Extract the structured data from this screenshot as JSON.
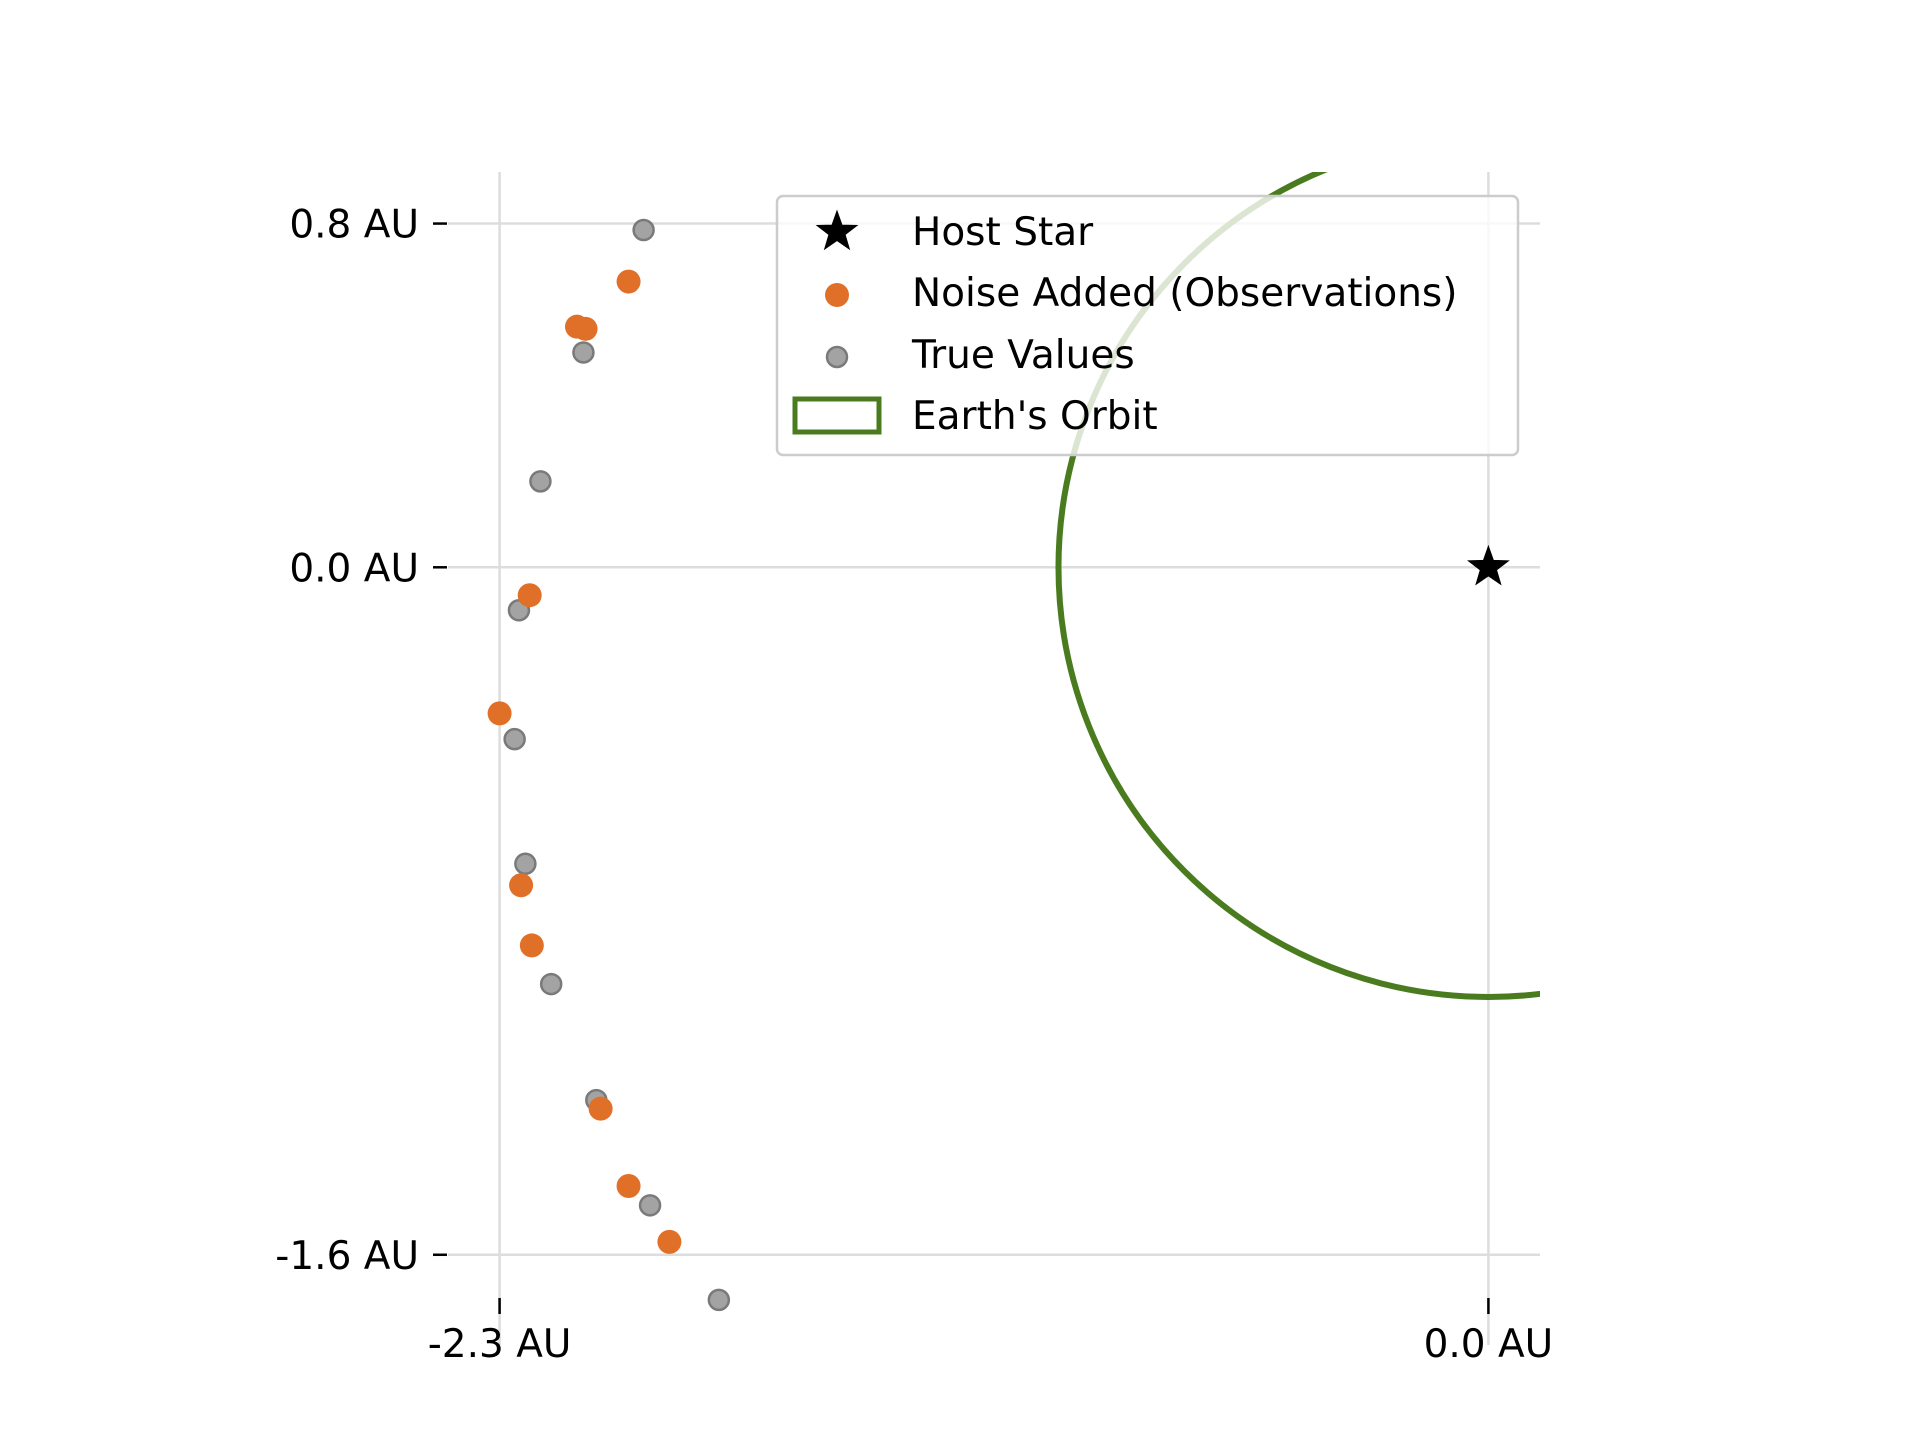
{
  "chart_data": {
    "type": "scatter",
    "title": "",
    "xlabel": "",
    "ylabel": "",
    "xlim": [
      -2.42,
      0.12
    ],
    "ylim": [
      -1.81,
      0.92
    ],
    "x_ticks": [
      {
        "value": -2.3,
        "label": "-2.3 AU"
      },
      {
        "value": 0.0,
        "label": "0.0 AU"
      }
    ],
    "y_ticks": [
      {
        "value": 0.8,
        "label": "0.8 AU"
      },
      {
        "value": 0.0,
        "label": "0.0 AU"
      },
      {
        "value": -1.6,
        "label": "-1.6 AU"
      }
    ],
    "grid": true,
    "legend_placement": "top-right",
    "colors": {
      "host_star": "#000000",
      "noise_added": "#e07028",
      "true_values": "#a3a3a3",
      "true_values_edge": "#7a7a7a",
      "earth_orbit": "#4a7c1f",
      "grid": "#dddddd"
    },
    "series": [
      {
        "name": "Host Star",
        "marker": "star",
        "points": [
          {
            "x": 0.0,
            "y": 0.0
          }
        ]
      },
      {
        "name": "Noise Added (Observations)",
        "marker": "circle",
        "points": [
          {
            "x": -2.0,
            "y": 0.665
          },
          {
            "x": -2.12,
            "y": 0.56
          },
          {
            "x": -2.1,
            "y": 0.555
          },
          {
            "x": -2.23,
            "y": -0.065
          },
          {
            "x": -2.3,
            "y": -0.34
          },
          {
            "x": -2.25,
            "y": -0.74
          },
          {
            "x": -2.225,
            "y": -0.88
          },
          {
            "x": -2.065,
            "y": -1.26
          },
          {
            "x": -2.0,
            "y": -1.44
          },
          {
            "x": -1.905,
            "y": -1.57
          }
        ]
      },
      {
        "name": "True Values",
        "marker": "circle",
        "points": [
          {
            "x": -1.965,
            "y": 0.785
          },
          {
            "x": -2.105,
            "y": 0.5
          },
          {
            "x": -2.205,
            "y": 0.2
          },
          {
            "x": -2.255,
            "y": -0.1
          },
          {
            "x": -2.265,
            "y": -0.4
          },
          {
            "x": -2.24,
            "y": -0.69
          },
          {
            "x": -2.18,
            "y": -0.97
          },
          {
            "x": -2.075,
            "y": -1.24
          },
          {
            "x": -1.95,
            "y": -1.485
          },
          {
            "x": -1.79,
            "y": -1.705
          }
        ]
      },
      {
        "name": "Earth's Orbit",
        "marker": "circle-outline",
        "center": {
          "x": 0.0,
          "y": 0.0
        },
        "radius": 1.0
      }
    ]
  }
}
